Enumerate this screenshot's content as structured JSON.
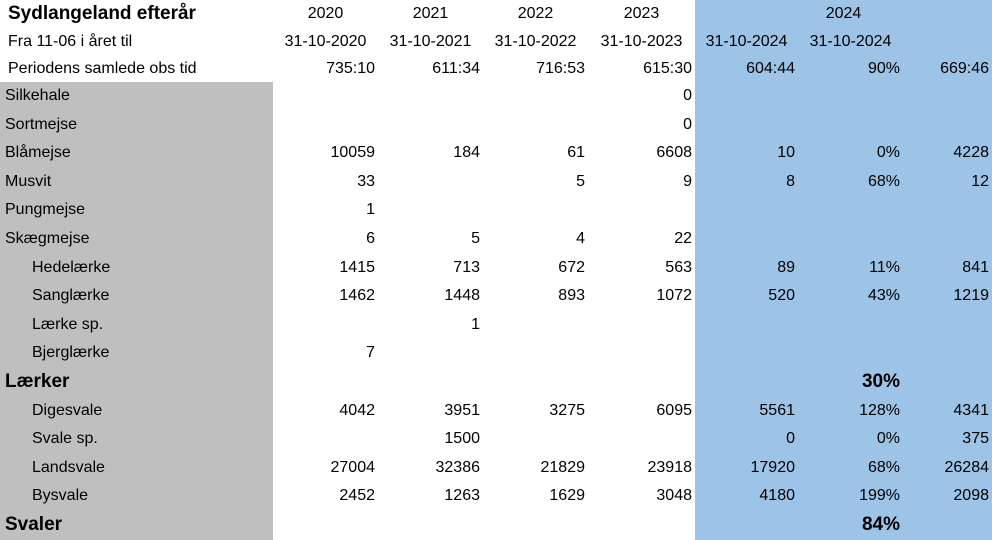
{
  "header": {
    "title": "Sydlangeland efterår",
    "years": [
      "2020",
      "2021",
      "2022",
      "2023",
      "2024"
    ],
    "period_label": "Fra 11-06 i året til",
    "period_ends": [
      "31-10-2020",
      "31-10-2021",
      "31-10-2022",
      "31-10-2023",
      "31-10-2024",
      "31-10-2024"
    ],
    "obs_label": "Periodens samlede obs tid",
    "obs_times": [
      "735:10",
      "611:34",
      "716:53",
      "615:30",
      "604:44",
      "90%",
      "669:46"
    ]
  },
  "rows": [
    {
      "label": "Silkehale",
      "indent": false,
      "bold": false,
      "cells": [
        null,
        null,
        null,
        0,
        null,
        null,
        null
      ]
    },
    {
      "label": "Sortmejse",
      "indent": false,
      "bold": false,
      "cells": [
        null,
        null,
        null,
        0,
        null,
        null,
        null
      ]
    },
    {
      "label": "Blåmejse",
      "indent": false,
      "bold": false,
      "cells": [
        10059,
        184,
        61,
        6608,
        10,
        "0%",
        4228
      ]
    },
    {
      "label": "Musvit",
      "indent": false,
      "bold": false,
      "cells": [
        33,
        null,
        5,
        9,
        8,
        "68%",
        12
      ]
    },
    {
      "label": "Pungmejse",
      "indent": false,
      "bold": false,
      "cells": [
        1,
        null,
        null,
        null,
        null,
        null,
        null
      ]
    },
    {
      "label": "Skægmejse",
      "indent": false,
      "bold": false,
      "cells": [
        6,
        5,
        4,
        22,
        null,
        null,
        null
      ]
    },
    {
      "label": "Hedelærke",
      "indent": true,
      "bold": false,
      "cells": [
        1415,
        713,
        672,
        563,
        89,
        "11%",
        841
      ]
    },
    {
      "label": "Sanglærke",
      "indent": true,
      "bold": false,
      "cells": [
        1462,
        1448,
        893,
        1072,
        520,
        "43%",
        1219
      ]
    },
    {
      "label": "Lærke sp.",
      "indent": true,
      "bold": false,
      "cells": [
        null,
        1,
        null,
        null,
        null,
        null,
        null
      ]
    },
    {
      "label": "Bjerglærke",
      "indent": true,
      "bold": false,
      "cells": [
        7,
        null,
        null,
        null,
        null,
        null,
        null
      ]
    },
    {
      "label": "Lærker",
      "indent": false,
      "bold": true,
      "cells": [
        null,
        null,
        null,
        null,
        null,
        "30%",
        null
      ]
    },
    {
      "label": "Digesvale",
      "indent": true,
      "bold": false,
      "cells": [
        4042,
        3951,
        3275,
        6095,
        5561,
        "128%",
        4341
      ]
    },
    {
      "label": "Svale sp.",
      "indent": true,
      "bold": false,
      "cells": [
        null,
        1500,
        null,
        null,
        0,
        "0%",
        375
      ]
    },
    {
      "label": "Landsvale",
      "indent": true,
      "bold": false,
      "cells": [
        27004,
        32386,
        21829,
        23918,
        17920,
        "68%",
        26284
      ]
    },
    {
      "label": "Bysvale",
      "indent": true,
      "bold": false,
      "cells": [
        2452,
        1263,
        1629,
        3048,
        4180,
        "199%",
        2098
      ]
    },
    {
      "label": "Svaler",
      "indent": false,
      "bold": true,
      "cells": [
        null,
        null,
        null,
        null,
        null,
        "84%",
        null
      ]
    }
  ]
}
